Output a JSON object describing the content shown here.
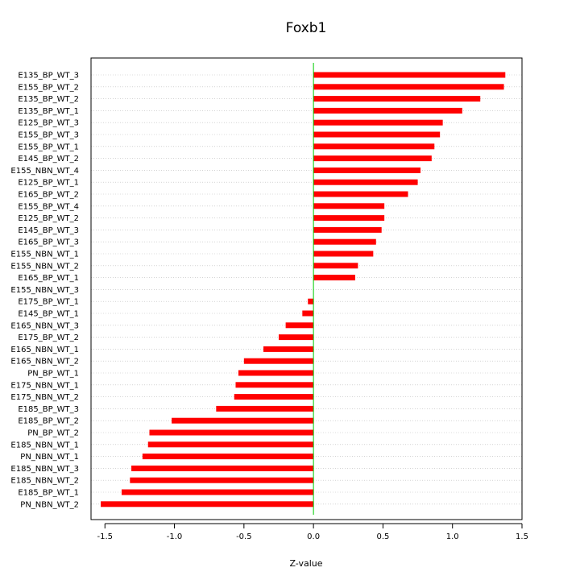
{
  "chart_data": {
    "type": "bar",
    "orientation": "horizontal",
    "title": "Foxb1",
    "xlabel": "Z-value",
    "ylabel": "",
    "xlim": [
      -1.6,
      1.5
    ],
    "xticks": [
      -1.5,
      -1.0,
      -0.5,
      0.0,
      0.5,
      1.0,
      1.5
    ],
    "xtick_labels": [
      "-1.5",
      "-1.0",
      "-0.5",
      "0.0",
      "0.5",
      "1.0",
      "1.5"
    ],
    "grid": "horizontal-dotted",
    "bar_color": "#ff0000",
    "zero_line_color": "#00cc00",
    "categories": [
      "E135_BP_WT_3",
      "E155_BP_WT_2",
      "E135_BP_WT_2",
      "E135_BP_WT_1",
      "E125_BP_WT_3",
      "E155_BP_WT_3",
      "E155_BP_WT_1",
      "E145_BP_WT_2",
      "E155_NBN_WT_4",
      "E125_BP_WT_1",
      "E165_BP_WT_2",
      "E155_BP_WT_4",
      "E125_BP_WT_2",
      "E145_BP_WT_3",
      "E165_BP_WT_3",
      "E155_NBN_WT_1",
      "E155_NBN_WT_2",
      "E165_BP_WT_1",
      "E155_NBN_WT_3",
      "E175_BP_WT_1",
      "E145_BP_WT_1",
      "E165_NBN_WT_3",
      "E175_BP_WT_2",
      "E165_NBN_WT_1",
      "E165_NBN_WT_2",
      "PN_BP_WT_1",
      "E175_NBN_WT_1",
      "E175_NBN_WT_2",
      "E185_BP_WT_3",
      "E185_BP_WT_2",
      "PN_BP_WT_2",
      "E185_NBN_WT_1",
      "PN_NBN_WT_1",
      "E185_NBN_WT_3",
      "E185_NBN_WT_2",
      "E185_BP_WT_1",
      "PN_NBN_WT_2"
    ],
    "values": [
      1.38,
      1.37,
      1.2,
      1.07,
      0.93,
      0.91,
      0.87,
      0.85,
      0.77,
      0.75,
      0.68,
      0.51,
      0.51,
      0.49,
      0.45,
      0.43,
      0.32,
      0.3,
      0.0,
      -0.04,
      -0.08,
      -0.2,
      -0.25,
      -0.36,
      -0.5,
      -0.54,
      -0.56,
      -0.57,
      -0.7,
      -1.02,
      -1.18,
      -1.19,
      -1.23,
      -1.31,
      -1.32,
      -1.38,
      -1.53
    ]
  }
}
